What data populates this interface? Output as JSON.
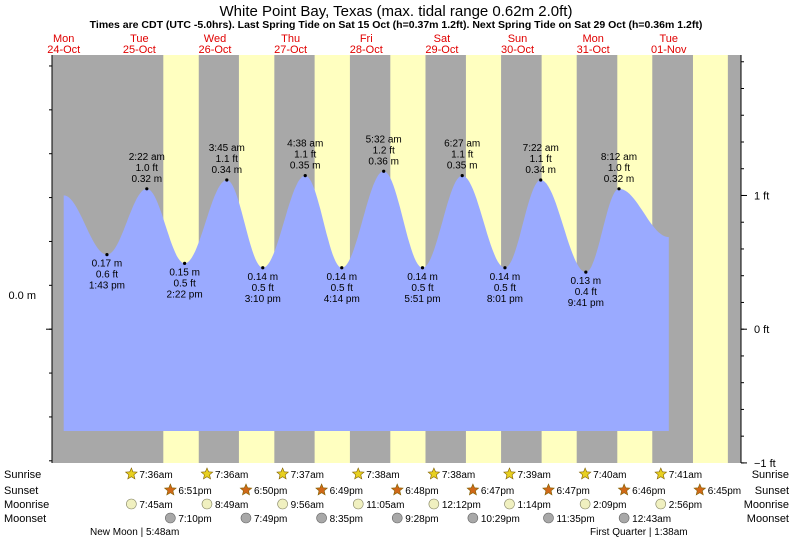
{
  "chart_data": {
    "type": "area",
    "title": "White Point Bay, Texas (max. tidal range 0.62m 2.0ft)",
    "subtitle": "Times are CDT (UTC -5.0hrs). Last Spring Tide on Sat 15 Oct (h=0.37m 1.2ft). Next Spring Tide on Sat 29 Oct (h=0.36m 1.2ft)",
    "left_axis": {
      "label": "0.0 m"
    },
    "right_axis": {
      "ticks": [
        {
          "label": "1 ft",
          "value": 1
        },
        {
          "label": "0 ft",
          "value": 0
        },
        {
          "label": "−1 ft",
          "value": -1
        }
      ]
    },
    "ylim_m": [
      -0.305,
      0.625
    ],
    "xlim_days": [
      -0.155,
      8.955
    ],
    "days": [
      {
        "dow": "Mon",
        "date": "24-Oct"
      },
      {
        "dow": "Tue",
        "date": "25-Oct"
      },
      {
        "dow": "Wed",
        "date": "26-Oct"
      },
      {
        "dow": "Thu",
        "date": "27-Oct"
      },
      {
        "dow": "Fri",
        "date": "28-Oct"
      },
      {
        "dow": "Sat",
        "date": "29-Oct"
      },
      {
        "dow": "Sun",
        "date": "30-Oct"
      },
      {
        "dow": "Mon",
        "date": "31-Oct"
      },
      {
        "dow": "Tue",
        "date": "01-Nov"
      }
    ],
    "daylight": [
      {
        "sunrise": 1.3167,
        "sunset": 1.7854
      },
      {
        "sunrise": 2.3167,
        "sunset": 2.7847
      },
      {
        "sunrise": 3.3174,
        "sunset": 3.784
      },
      {
        "sunrise": 4.3181,
        "sunset": 4.7833
      },
      {
        "sunrise": 5.3181,
        "sunset": 5.7826
      },
      {
        "sunrise": 6.3188,
        "sunset": 6.7826
      },
      {
        "sunrise": 7.3194,
        "sunset": 7.7819
      },
      {
        "sunrise": 8.3201,
        "sunset": 8.7813
      }
    ],
    "tides": [
      {
        "type": "high",
        "t": 1.0986,
        "h": 0.32,
        "lines": [
          "2:22 am",
          "1.0 ft",
          "0.32 m"
        ]
      },
      {
        "type": "high",
        "t": 2.1563,
        "h": 0.34,
        "lines": [
          "3:45 am",
          "1.1 ft",
          "0.34 m"
        ]
      },
      {
        "type": "high",
        "t": 3.1931,
        "h": 0.35,
        "lines": [
          "4:38 am",
          "1.1 ft",
          "0.35 m"
        ]
      },
      {
        "type": "high",
        "t": 4.2306,
        "h": 0.36,
        "lines": [
          "5:32 am",
          "1.2 ft",
          "0.36 m"
        ]
      },
      {
        "type": "high",
        "t": 5.2688,
        "h": 0.35,
        "lines": [
          "6:27 am",
          "1.1 ft",
          "0.35 m"
        ]
      },
      {
        "type": "high",
        "t": 6.3069,
        "h": 0.34,
        "lines": [
          "7:22 am",
          "1.1 ft",
          "0.34 m"
        ]
      },
      {
        "type": "high",
        "t": 7.3417,
        "h": 0.32,
        "lines": [
          "8:12 am",
          "1.0 ft",
          "0.32 m"
        ]
      },
      {
        "type": "low",
        "t": 0.5715,
        "h": 0.17,
        "lines": [
          "0.17 m",
          "0.6 ft",
          "1:43 pm"
        ]
      },
      {
        "type": "low",
        "t": 1.5986,
        "h": 0.15,
        "lines": [
          "0.15 m",
          "0.5 ft",
          "2:22 pm"
        ]
      },
      {
        "type": "low",
        "t": 2.6319,
        "h": 0.14,
        "lines": [
          "0.14 m",
          "0.5 ft",
          "3:10 pm"
        ]
      },
      {
        "type": "low",
        "t": 3.6764,
        "h": 0.14,
        "lines": [
          "0.14 m",
          "0.5 ft",
          "4:14 pm"
        ]
      },
      {
        "type": "low",
        "t": 4.7438,
        "h": 0.14,
        "lines": [
          "0.14 m",
          "0.5 ft",
          "5:51 pm"
        ]
      },
      {
        "type": "low",
        "t": 5.834,
        "h": 0.14,
        "lines": [
          "0.14 m",
          "0.5 ft",
          "8:01 pm"
        ]
      },
      {
        "type": "low",
        "t": 6.9035,
        "h": 0.13,
        "lines": [
          "0.13 m",
          "0.4 ft",
          "9:41 pm"
        ]
      }
    ],
    "series_start_day": 0.0,
    "series_end_day": 8.0,
    "start_height_m": 0.305,
    "end_height_m": 0.21
  },
  "astro": {
    "row_labels": [
      "Sunrise",
      "Sunset",
      "Moonrise",
      "Moonset"
    ],
    "colors": {
      "sunrise": "#e8d020",
      "sunset": "#d06818",
      "moonrise": "#f0f0c0",
      "moonset": "#a8a8a8"
    },
    "days": [
      {
        "sunrise": "7:36am",
        "sunset": "6:51pm",
        "moonrise": "7:45am",
        "moonset": "7:10pm"
      },
      {
        "sunrise": "7:36am",
        "sunset": "6:50pm",
        "moonrise": "8:49am",
        "moonset": "7:49pm"
      },
      {
        "sunrise": "7:37am",
        "sunset": "6:49pm",
        "moonrise": "9:56am",
        "moonset": "8:35pm"
      },
      {
        "sunrise": "7:38am",
        "sunset": "6:48pm",
        "moonrise": "11:05am",
        "moonset": "9:28pm"
      },
      {
        "sunrise": "7:38am",
        "sunset": "6:47pm",
        "moonrise": "12:12pm",
        "moonset": "10:29pm"
      },
      {
        "sunrise": "7:39am",
        "sunset": "6:47pm",
        "moonrise": "1:14pm",
        "moonset": "11:35pm"
      },
      {
        "sunrise": "7:40am",
        "sunset": "6:46pm",
        "moonrise": "2:09pm",
        "moonset": "12:43am"
      },
      {
        "sunrise": "7:41am",
        "sunset": "6:45pm",
        "moonrise": "2:56pm",
        "moonset": ""
      }
    ],
    "moon_phases": [
      {
        "label": "New Moon | 5:48am"
      },
      {
        "label": "First Quarter | 1:38am"
      }
    ]
  },
  "colors": {
    "night": "#a8a8a8",
    "day": "#ffffc0",
    "water": "#9aaaff",
    "date_red": "#e00000"
  }
}
